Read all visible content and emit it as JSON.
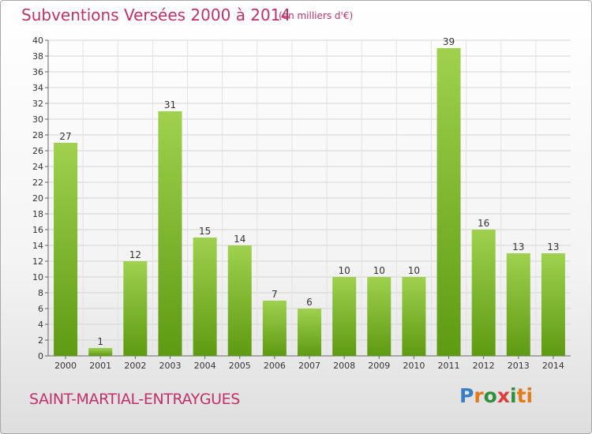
{
  "header": {
    "title": "Subventions Versées 2000 à 2014",
    "unit": "(en milliers d'€)"
  },
  "footer": {
    "commune": "SAINT-MARTIAL-ENTRAYGUES",
    "logo": "Proxiti"
  },
  "colors": {
    "accent": "#c0306b",
    "bar_top": "#9fd14e",
    "bar_bottom": "#5e9a12"
  },
  "chart_data": {
    "type": "bar",
    "categories": [
      "2000",
      "2001",
      "2002",
      "2003",
      "2004",
      "2005",
      "2006",
      "2007",
      "2008",
      "2009",
      "2010",
      "2011",
      "2012",
      "2013",
      "2014"
    ],
    "values": [
      27,
      1,
      12,
      31,
      15,
      14,
      7,
      6,
      10,
      10,
      10,
      39,
      16,
      13,
      13
    ],
    "ylim": [
      0,
      40
    ],
    "yticks": [
      0,
      2,
      4,
      6,
      8,
      10,
      12,
      14,
      16,
      18,
      20,
      22,
      24,
      26,
      28,
      30,
      32,
      34,
      36,
      38,
      40
    ],
    "grid": true,
    "data_labels": true
  }
}
